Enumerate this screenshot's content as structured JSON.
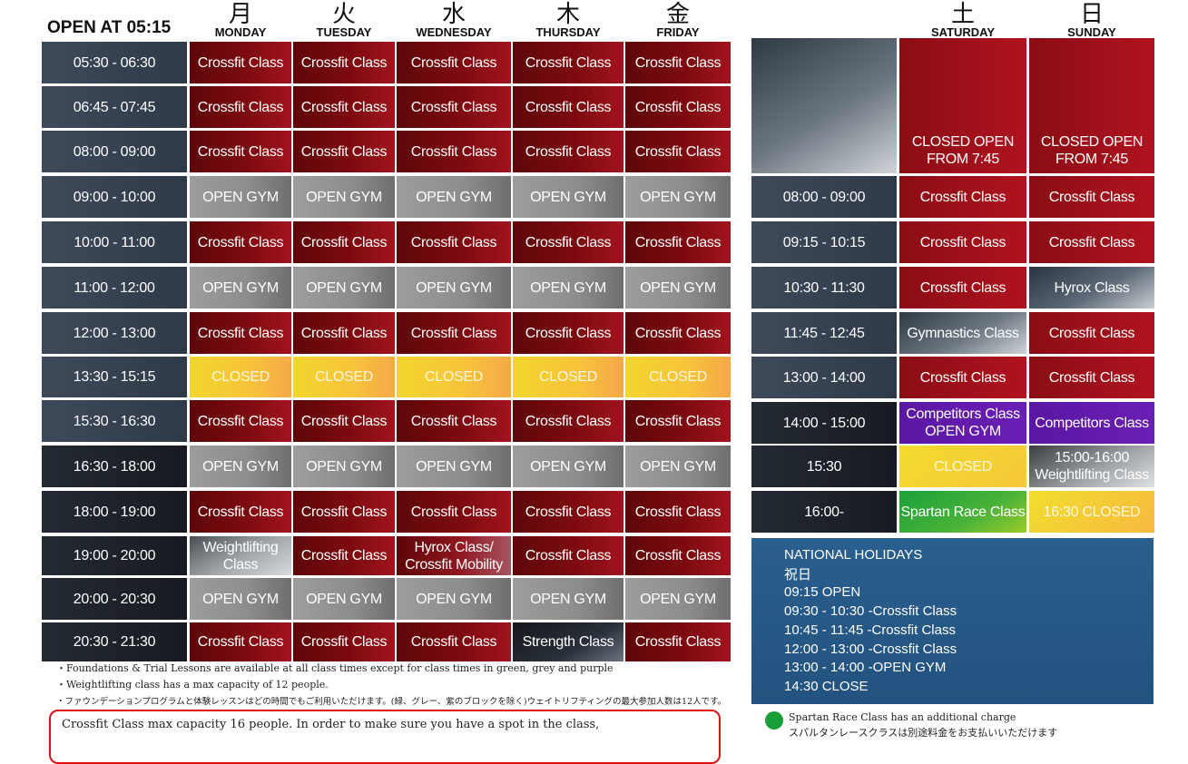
{
  "header": {
    "open_label": "OPEN AT 05:15"
  },
  "weekdays": [
    {
      "kanji": "月",
      "en": "MONDAY"
    },
    {
      "kanji": "火",
      "en": "TUESDAY"
    },
    {
      "kanji": "水",
      "en": "WEDNESDAY"
    },
    {
      "kanji": "木",
      "en": "THURSDAY"
    },
    {
      "kanji": "金",
      "en": "FRIDAY"
    }
  ],
  "weekend_days": [
    {
      "kanji": "土",
      "en": "SATURDAY"
    },
    {
      "kanji": "日",
      "en": "SUNDAY"
    }
  ],
  "weekday_rows": [
    {
      "time": "05:30 - 06:30",
      "cells": [
        "Crossfit Class",
        "Crossfit Class",
        "Crossfit Class",
        "Crossfit Class",
        "Crossfit Class"
      ]
    },
    {
      "time": "06:45 - 07:45",
      "cells": [
        "Crossfit Class",
        "Crossfit Class",
        "Crossfit Class",
        "Crossfit Class",
        "Crossfit Class"
      ]
    },
    {
      "time": "08:00 - 09:00",
      "cells": [
        "Crossfit Class",
        "Crossfit Class",
        "Crossfit Class",
        "Crossfit Class",
        "Crossfit Class"
      ]
    },
    {
      "time": "09:00 - 10:00",
      "cells": [
        "OPEN GYM",
        "OPEN GYM",
        "OPEN GYM",
        "OPEN GYM",
        "OPEN GYM"
      ]
    },
    {
      "time": "10:00 - 11:00",
      "cells": [
        "Crossfit Class",
        "Crossfit Class",
        "Crossfit Class",
        "Crossfit Class",
        "Crossfit Class"
      ]
    },
    {
      "time": "11:00 - 12:00",
      "cells": [
        "OPEN GYM",
        "OPEN GYM",
        "OPEN GYM",
        "OPEN GYM",
        "OPEN GYM"
      ]
    },
    {
      "time": "12:00 - 13:00",
      "cells": [
        "Crossfit Class",
        "Crossfit Class",
        "Crossfit Class",
        "Crossfit Class",
        "Crossfit Class"
      ]
    },
    {
      "time": "13:30 - 15:15",
      "cells": [
        "CLOSED",
        "CLOSED",
        "CLOSED",
        "CLOSED",
        "CLOSED"
      ]
    },
    {
      "time": "15:30 - 16:30",
      "cells": [
        "Crossfit Class",
        "Crossfit Class",
        "Crossfit Class",
        "Crossfit Class",
        "Crossfit Class"
      ]
    },
    {
      "time": "16:30 - 18:00",
      "cells": [
        "OPEN GYM",
        "OPEN GYM",
        "OPEN GYM",
        "OPEN GYM",
        "OPEN GYM"
      ]
    },
    {
      "time": "18:00 - 19:00",
      "cells": [
        "Crossfit Class",
        "Crossfit Class",
        "Crossfit Class",
        "Crossfit Class",
        "Crossfit Class"
      ]
    },
    {
      "time": "19:00 - 20:00",
      "cells": [
        "Weightlifting Class",
        "Crossfit Class",
        "Hyrox Class/ Crossfit Mobility",
        "Crossfit Class",
        "Crossfit Class"
      ]
    },
    {
      "time": "20:00 - 20:30",
      "cells": [
        "OPEN GYM",
        "OPEN GYM",
        "OPEN GYM",
        "OPEN GYM",
        "OPEN GYM"
      ]
    },
    {
      "time": "20:30 - 21:30",
      "cells": [
        "Crossfit Class",
        "Crossfit Class",
        "Crossfit Class",
        "Strength Class",
        "Crossfit Class"
      ]
    }
  ],
  "weekend": {
    "closed_top": {
      "sat": "CLOSED OPEN FROM 7:45",
      "sun": "CLOSED OPEN FROM 7:45"
    },
    "rows": [
      {
        "time": "08:00 - 09:00",
        "sat": "Crossfit Class",
        "sun": "Crossfit Class"
      },
      {
        "time": "09:15 - 10:15",
        "sat": "Crossfit Class",
        "sun": "Crossfit Class"
      },
      {
        "time": "10:30 - 11:30",
        "sat": "Crossfit Class",
        "sun": "Hyrox Class"
      },
      {
        "time": "11:45 - 12:45",
        "sat": "Gymnastics Class",
        "sun": "Crossfit Class"
      },
      {
        "time": "13:00 - 14:00",
        "sat": "Crossfit Class",
        "sun": "Crossfit Class"
      },
      {
        "time": "14:00 - 15:00",
        "sat": "Competitors Class OPEN GYM",
        "sun": "Competitors Class"
      },
      {
        "time": "15:30",
        "sat": "CLOSED",
        "sun": "15:00-16:00 Weightlifting Class"
      },
      {
        "time": "16:00-",
        "sat": "Spartan Race Class",
        "sun": "16:30 CLOSED"
      }
    ]
  },
  "holidays": {
    "title": "NATIONAL HOLIDAYS",
    "kanji": "祝日",
    "lines": [
      "09:15 OPEN",
      "09:30 - 10:30 -Crossfit Class",
      "10:45 - 11:45 -Crossfit Class",
      "12:00 - 13:00 -Crossfit Class",
      "13:00 - 14:00 -OPEN GYM",
      "14:30 CLOSE"
    ]
  },
  "notes": [
    "・Foundations & Trial Lessons are available at all class times except for class times in green, grey and purple",
    "・Weightlifting class has a max capacity of 12 people.",
    "・ファウンデーションプログラムと体験レッスンはどの時間でもご利用いただけます。(緑、グレー、紫のブロックを除く)ウェイトリフティングの最大参加人数は12人です。"
  ],
  "capacity_note": "Crossfit Class max capacity 16 people. In order to make sure you have a spot in the class,",
  "spartan_note": {
    "en": "Spartan Race Class has an additional charge",
    "ja": "スパルタンレースクラスは別途料金をお支払いいただけます"
  },
  "colors": {
    "crossfit": "#7c0a10",
    "open_gym": "#8c8c8c",
    "closed": "#f7c33a",
    "time": "#3e4a5a",
    "competitors": "#6a1fb4",
    "spartan": "#1aa13a",
    "holiday_panel": "#26588a",
    "capacity_border": "#dd1111"
  }
}
